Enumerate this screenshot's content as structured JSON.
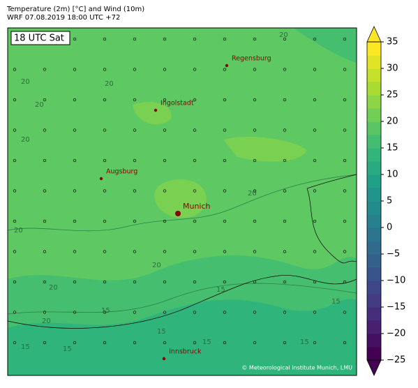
{
  "header": {
    "title": "Temperature (2m) [°C] and Wind (10m)",
    "subtitle": "WRF 07.08.2019 18:00 UTC +72"
  },
  "map": {
    "time_label": "18 UTC Sat",
    "cities": [
      {
        "name": "Regensburg"
      },
      {
        "name": "Ingolstadt"
      },
      {
        "name": "Augsburg"
      },
      {
        "name": "Munich"
      },
      {
        "name": "Innsbruck"
      }
    ],
    "contour_labels": [
      "20",
      "20",
      "20",
      "20",
      "20",
      "20",
      "20",
      "20",
      "20",
      "20",
      "15",
      "15",
      "15",
      "15",
      "15",
      "15",
      "15",
      "15"
    ],
    "credit": "© Meteorological Institute Munich, LMU"
  },
  "colorbar": {
    "min": -25,
    "max": 35,
    "level_step": 2.5,
    "ticks": [
      {
        "value": -25,
        "label": "−25"
      },
      {
        "value": -20,
        "label": "−20"
      },
      {
        "value": -15,
        "label": "−15"
      },
      {
        "value": -10,
        "label": "−10"
      },
      {
        "value": -5,
        "label": "−5"
      },
      0,
      5,
      10,
      15,
      20,
      25,
      30,
      35
    ]
  }
}
